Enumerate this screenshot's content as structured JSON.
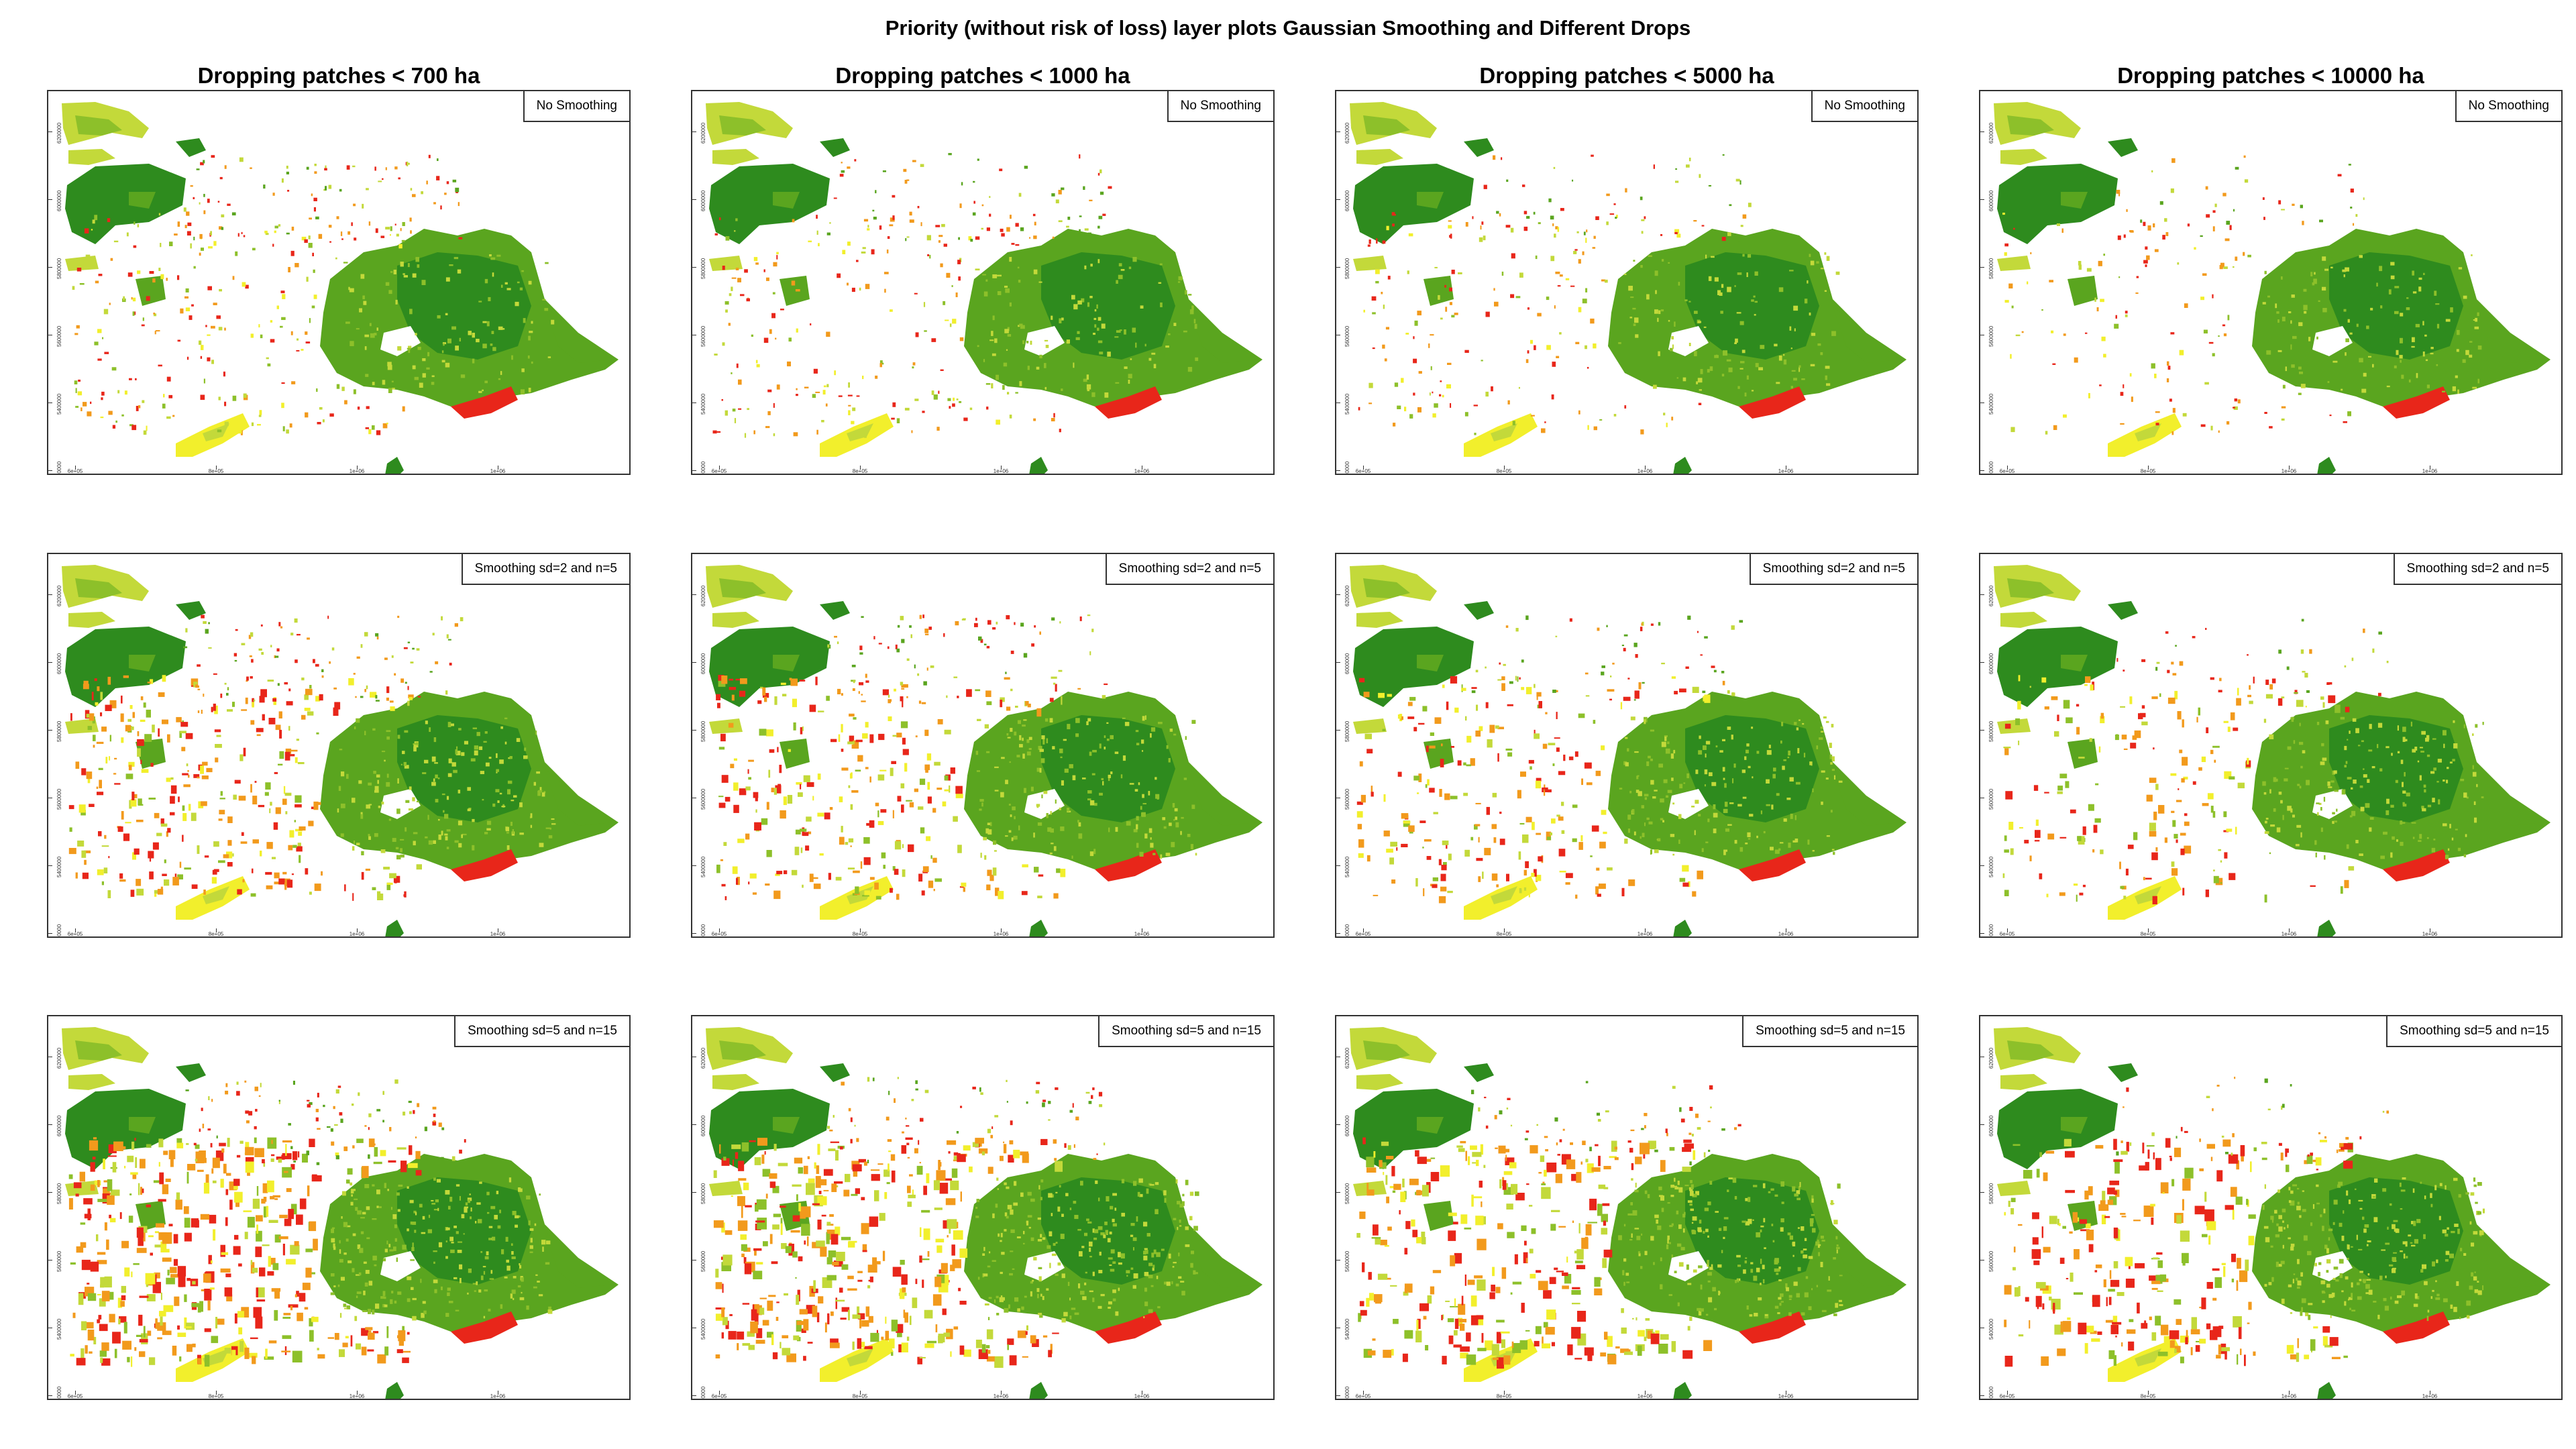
{
  "title": "Priority (without risk of loss) layer  plots  Gaussian Smoothing and Different Drops",
  "columns": [
    "Dropping patches < 700 ha",
    "Dropping patches < 1000 ha",
    "Dropping patches < 5000 ha",
    "Dropping patches < 10000 ha"
  ],
  "rows": [
    "No Smoothing",
    "Smoothing sd=2 and n=5",
    "Smoothing sd=5 and n=15"
  ],
  "axes": {
    "x_ticks": [
      "6e+05",
      "8e+05",
      "1e+06",
      "1e+06"
    ],
    "y_ticks": [
      "6200000",
      "6000000",
      "5800000",
      "5600000",
      "5400000",
      "5200000"
    ]
  },
  "palette": {
    "dark_green": "#2e8b1e",
    "green": "#5aa51f",
    "light_green": "#8dc02a",
    "yellow_green": "#c3d93a",
    "yellow": "#f2ef2c",
    "orange": "#f29a1c",
    "red": "#e8261a",
    "frame": "#333333"
  },
  "map_legend": "absent"
}
